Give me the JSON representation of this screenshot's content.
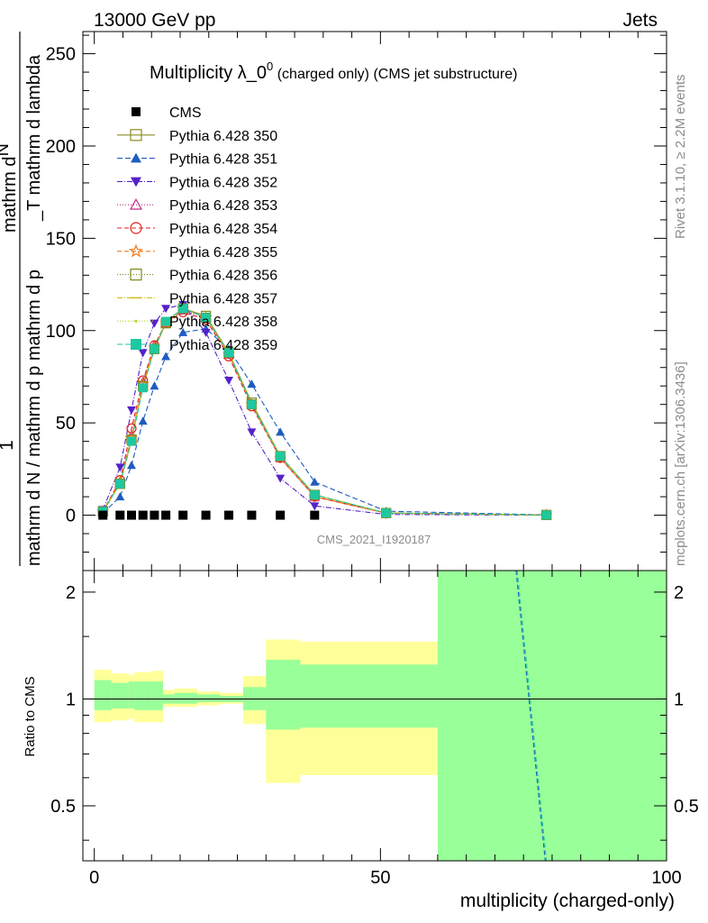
{
  "header": {
    "left": "13000 GeV pp",
    "right": "Jets"
  },
  "side_labels": {
    "rivet": "Rivet 3.1.10, ≥ 2.2M events",
    "mcplots": "mcplots.cern.ch [arXiv:1306.3436]"
  },
  "chart_data": {
    "type": "line",
    "title_main": "Multiplicity λ_0",
    "title_sup": "0",
    "title_small": " (charged only) (CMS jet substructure)",
    "xlabel": "multiplicity (charged-only)",
    "ylabel_main": "mathrm d N / mathrm d p mathrm d p",
    "ylabel_top": "mathrm d",
    "ylabel_topN": "N",
    "ylabel_right": "_T mathrm d lambda",
    "ylabel_one": "1",
    "analysis_id": "CMS_2021_I1920187",
    "ratio_ylabel": "Ratio to CMS",
    "xlim": [
      -2,
      100
    ],
    "ylim": [
      -30,
      262
    ],
    "ratio_ylim": [
      0.35,
      2.3
    ],
    "x_ticks": [
      0,
      50,
      100
    ],
    "x_tick_labels": [
      "0",
      "50",
      "100"
    ],
    "y_ticks": [
      0,
      50,
      100,
      150,
      200,
      250
    ],
    "y_tick_labels": [
      "0",
      "50",
      "100",
      "150",
      "200",
      "250"
    ],
    "ratio_ticks": [
      0.5,
      1,
      2
    ],
    "ratio_tick_labels": [
      "0.5",
      "1",
      "2"
    ],
    "data": {
      "name": "CMS",
      "x": [
        1.5,
        4.5,
        6.5,
        8.5,
        10.5,
        12.5,
        15.5,
        19.5,
        23.5,
        27.5,
        32.5,
        38.5
      ],
      "y": [
        0,
        0,
        0,
        0,
        0,
        0,
        0,
        0,
        0,
        0,
        0,
        0
      ]
    },
    "mc_x": [
      1.5,
      4.5,
      6.5,
      8.5,
      10.5,
      12.5,
      15.5,
      19.5,
      23.5,
      27.5,
      32.5,
      38.5,
      51,
      79
    ],
    "series": [
      {
        "name": "Pythia 6.428 350",
        "color": "#8a8a26",
        "marker": "square-open",
        "dash": "",
        "y": [
          2,
          17,
          41,
          70,
          90,
          104,
          112,
          108,
          88,
          61,
          32,
          11,
          1.2,
          0.1
        ]
      },
      {
        "name": "Pythia 6.428 351",
        "color": "#1f5cbf",
        "marker": "triangle-up",
        "dash": "6,3",
        "y": [
          1,
          10,
          27,
          51,
          70,
          86,
          99,
          101,
          90,
          71,
          45,
          18,
          2.2,
          0.2
        ]
      },
      {
        "name": "Pythia 6.428 352",
        "color": "#5522c8",
        "marker": "triangle-down",
        "dash": "6,2,1,2",
        "y": [
          3,
          26,
          57,
          88,
          104,
          112,
          114,
          99,
          73,
          45,
          20,
          5,
          0.4,
          0.0
        ]
      },
      {
        "name": "Pythia 6.428 353",
        "color": "#c0288a",
        "marker": "triangle-open",
        "dash": "1,2",
        "y": [
          2,
          18,
          43,
          72,
          92,
          104,
          111,
          107,
          87,
          60,
          31,
          10,
          1.1,
          0.1
        ]
      },
      {
        "name": "Pythia 6.428 354",
        "color": "#e0201c",
        "marker": "circle-open",
        "dash": "5,3",
        "y": [
          2,
          19,
          47,
          73,
          92,
          104,
          110,
          106,
          86,
          59,
          31,
          10,
          1.1,
          0.1
        ]
      },
      {
        "name": "Pythia 6.428 355",
        "color": "#f07a1c",
        "marker": "star-open",
        "dash": "5,3",
        "y": [
          2,
          18,
          42,
          71,
          91,
          104,
          112,
          107,
          87,
          60,
          31,
          10,
          1.1,
          0.1
        ]
      },
      {
        "name": "Pythia 6.428 356",
        "color": "#7d8a1a",
        "marker": "square-open",
        "dash": "1,2",
        "y": [
          2,
          17,
          41,
          70,
          90,
          104,
          112,
          107,
          88,
          60,
          32,
          11,
          1.2,
          0.1
        ]
      },
      {
        "name": "Pythia 6.428 357",
        "color": "#d4bc16",
        "marker": "tick",
        "dash": "6,2,1,2",
        "y": [
          2,
          17,
          41,
          70,
          90,
          104,
          112,
          107,
          88,
          60,
          32,
          11,
          1.2,
          0.1
        ]
      },
      {
        "name": "Pythia 6.428 358",
        "color": "#b6d21c",
        "marker": "dot",
        "dash": "1,2",
        "y": [
          2,
          17,
          41,
          70,
          90,
          104,
          112,
          107,
          88,
          60,
          32,
          11,
          1.2,
          0.1
        ]
      },
      {
        "name": "Pythia 6.428 359",
        "color": "#1ec8a0",
        "marker": "square-filled",
        "dash": "6,3",
        "y": [
          2,
          17,
          40,
          69,
          90,
          105,
          112,
          107,
          88,
          60,
          32,
          11,
          1.2,
          0.1
        ]
      }
    ],
    "ratio_bands": {
      "edges": [
        0,
        3,
        6,
        7,
        10,
        12,
        14,
        18,
        22,
        26,
        30,
        36,
        60,
        100
      ],
      "yellow": [
        [
          0.86,
          1.21
        ],
        [
          0.87,
          1.18
        ],
        [
          0.88,
          1.17
        ],
        [
          0.86,
          1.19
        ],
        [
          0.86,
          1.2
        ],
        [
          0.95,
          1.06
        ],
        [
          0.95,
          1.07
        ],
        [
          0.96,
          1.05
        ],
        [
          0.97,
          1.04
        ],
        [
          0.85,
          1.16
        ],
        [
          0.58,
          1.47
        ],
        [
          0.61,
          1.45
        ],
        [
          0.35,
          2.3
        ]
      ],
      "green": [
        [
          0.93,
          1.13
        ],
        [
          0.94,
          1.11
        ],
        [
          0.94,
          1.12
        ],
        [
          0.93,
          1.12
        ],
        [
          0.93,
          1.12
        ],
        [
          0.97,
          1.03
        ],
        [
          0.97,
          1.04
        ],
        [
          0.98,
          1.03
        ],
        [
          0.98,
          1.02
        ],
        [
          0.93,
          1.08
        ],
        [
          0.82,
          1.29
        ],
        [
          0.83,
          1.25
        ],
        [
          0.35,
          2.3
        ]
      ]
    },
    "ratio_lines": [
      {
        "color": "#1f5cbf",
        "x": [
          73.7,
          78.8
        ],
        "y": [
          2.3,
          0.35
        ]
      },
      {
        "color": "#1ec8a0",
        "x": [
          73.9,
          79.0
        ],
        "y": [
          2.3,
          0.35
        ]
      }
    ]
  }
}
